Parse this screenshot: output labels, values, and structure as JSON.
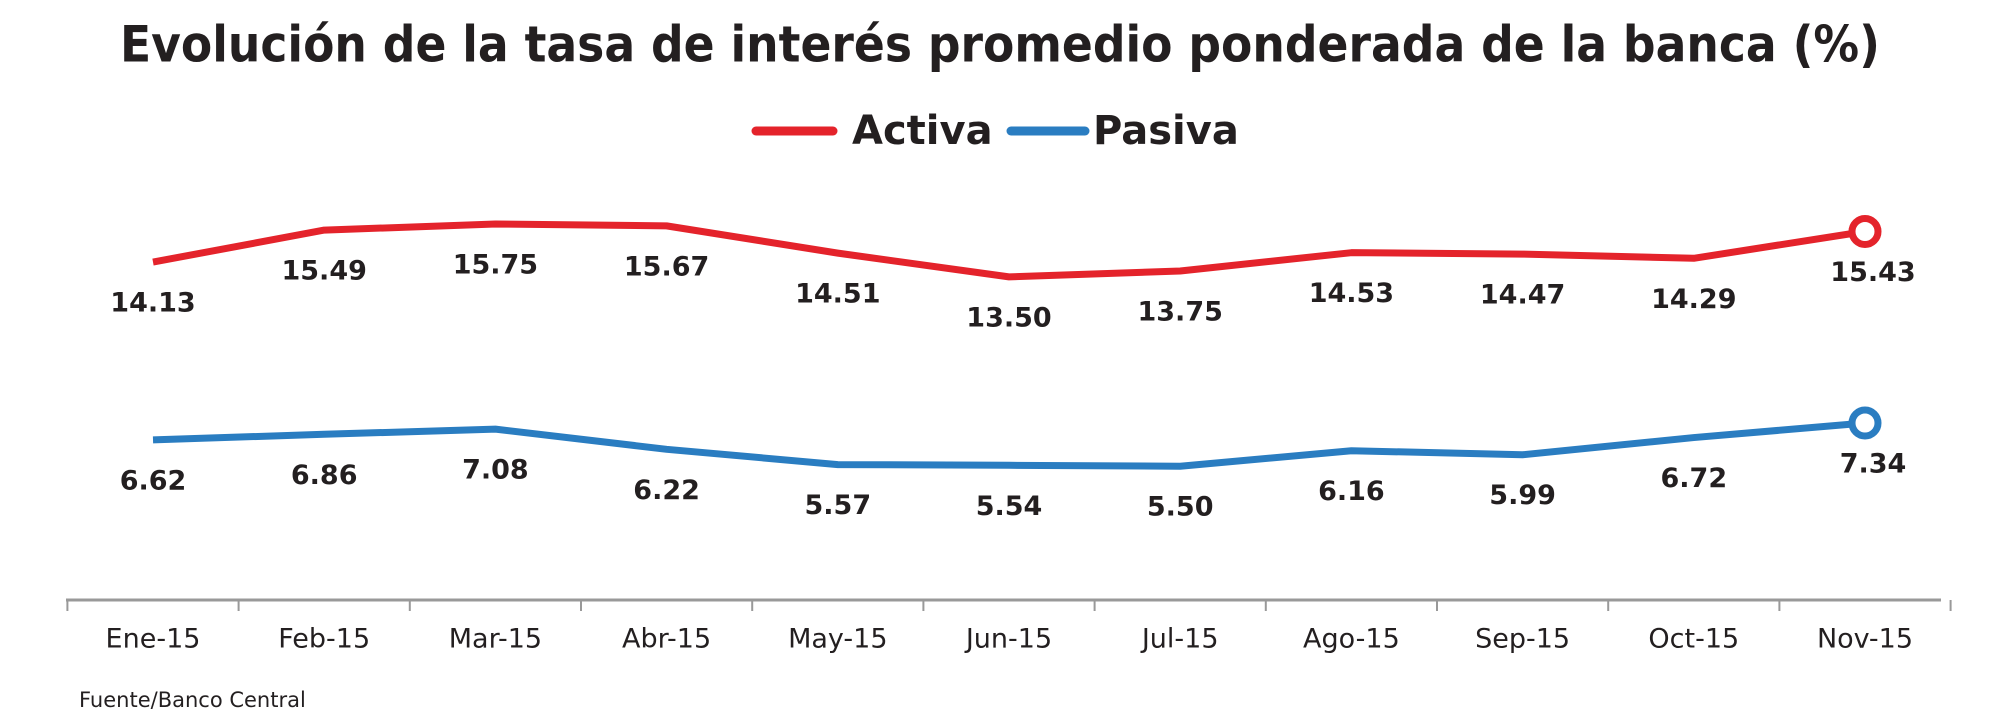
{
  "chart_data": {
    "type": "line",
    "title": "Evolución de la tasa de interés promedio ponderada de la banca (%)",
    "categories": [
      "Ene-15",
      "Feb-15",
      "Mar-15",
      "Abr-15",
      "May-15",
      "Jun-15",
      "Jul-15",
      "Ago-15",
      "Sep-15",
      "Oct-15",
      "Nov-15"
    ],
    "series": [
      {
        "name": "Activa",
        "color": "#e4232b",
        "values": [
          14.13,
          15.49,
          15.75,
          15.67,
          14.51,
          13.5,
          13.75,
          14.53,
          14.47,
          14.29,
          15.43
        ],
        "value_labels": [
          "14.13",
          "15.49",
          "15.75",
          "15.67",
          "14.51",
          "13.50",
          "13.75",
          "14.53",
          "14.47",
          "14.29",
          "15.43"
        ]
      },
      {
        "name": "Pasiva",
        "color": "#2a7dc1",
        "values": [
          6.62,
          6.86,
          7.08,
          6.22,
          5.57,
          5.54,
          5.5,
          6.16,
          5.99,
          6.72,
          7.34
        ],
        "value_labels": [
          "6.62",
          "6.86",
          "7.08",
          "6.22",
          "5.57",
          "5.54",
          "5.50",
          "6.16",
          "5.99",
          "6.72",
          "7.34"
        ]
      }
    ],
    "source": "Fuente/Banco Central"
  }
}
